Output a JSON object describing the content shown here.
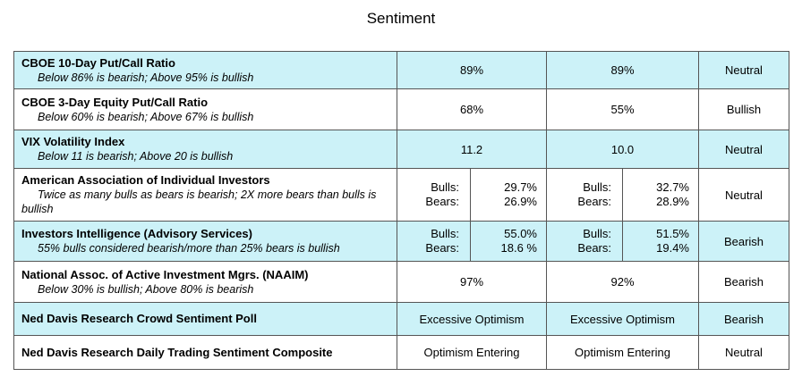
{
  "title": "Sentiment",
  "rows": [
    {
      "main": "CBOE 10-Day Put/Call Ratio",
      "sub": "Below 86% is bearish; Above 95% is bullish",
      "v1": "89%",
      "v2": "89%",
      "sentiment": "Neutral"
    },
    {
      "main": "CBOE 3-Day Equity Put/Call Ratio",
      "sub": "Below 60% is bearish; Above 67% is bullish",
      "v1": "68%",
      "v2": "55%",
      "sentiment": "Bullish"
    },
    {
      "main": "VIX Volatility Index",
      "sub": "Below 11 is bearish; Above 20 is bullish",
      "v1": "11.2",
      "v2": "10.0",
      "sentiment": "Neutral"
    },
    {
      "main": "American Association of Individual Investors",
      "sub": "Twice as many bulls as bears is bearish; 2X more bears than bulls is bullish",
      "bulls_label": "Bulls:",
      "bears_label": "Bears:",
      "v1_bulls": "29.7%",
      "v1_bears": "26.9%",
      "v2_bulls": "32.7%",
      "v2_bears": "28.9%",
      "sentiment": "Neutral"
    },
    {
      "main": "Investors Intelligence (Advisory Services)",
      "sub": "55% bulls considered bearish/more than 25% bears is bullish",
      "bulls_label": "Bulls:",
      "bears_label": "Bears:",
      "v1_bulls": "55.0%",
      "v1_bears": "18.6 %",
      "v2_bulls": "51.5%",
      "v2_bears": "19.4%",
      "sentiment": "Bearish"
    },
    {
      "main": "National Assoc. of Active Investment Mgrs. (NAAIM)",
      "sub": "Below 30% is bullish; Above 80% is bearish",
      "v1": "97%",
      "v2": "92%",
      "sentiment": "Bearish"
    },
    {
      "main": "Ned Davis Research Crowd Sentiment Poll",
      "v1": "Excessive Optimism",
      "v2": "Excessive Optimism",
      "sentiment": "Bearish"
    },
    {
      "main": "Ned Davis Research Daily Trading Sentiment Composite",
      "v1": "Optimism Entering",
      "v2": "Optimism Entering",
      "sentiment": "Neutral"
    }
  ],
  "colors": {
    "highlight": "#ccf2f8",
    "border": "#555555"
  }
}
